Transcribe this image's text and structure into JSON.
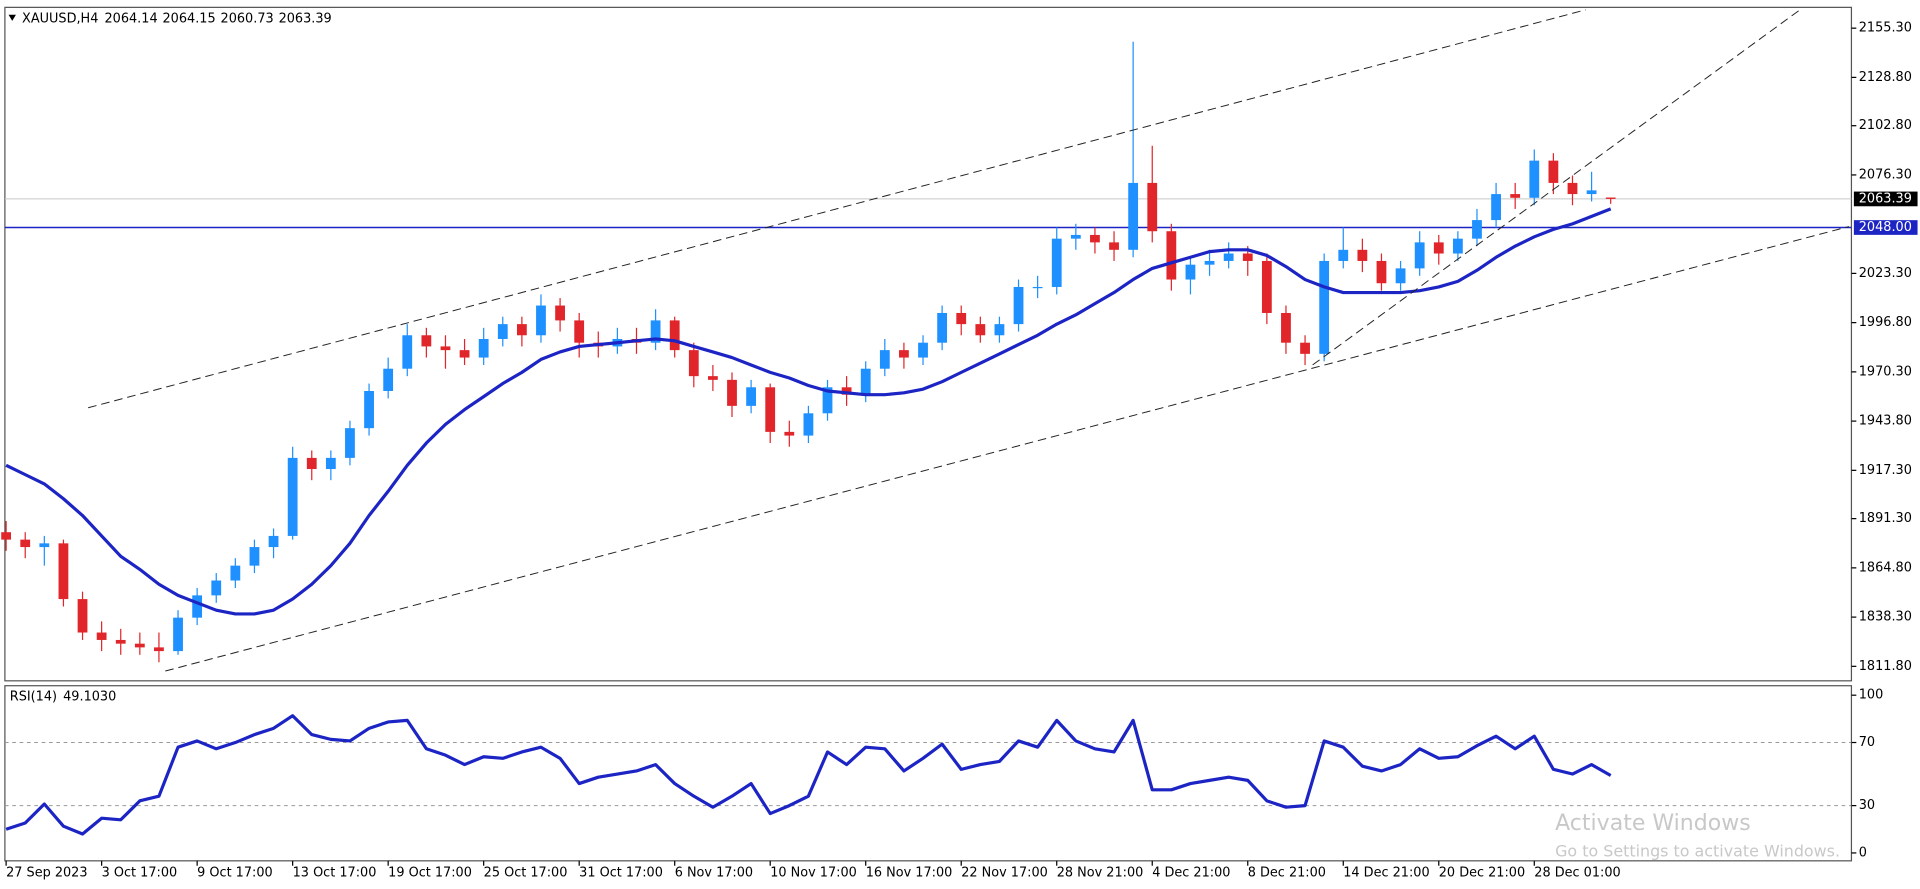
{
  "chart_data": [
    {
      "type": "candlestick",
      "title": "XAUUSD,H4",
      "categories": [
        "27 Sep 2023",
        null,
        null,
        null,
        null,
        "3 Oct 17:00",
        null,
        null,
        null,
        null,
        "9 Oct 17:00",
        null,
        null,
        null,
        null,
        "13 Oct 17:00",
        null,
        null,
        null,
        null,
        "19 Oct 17:00",
        null,
        null,
        null,
        null,
        "25 Oct 17:00",
        null,
        null,
        null,
        null,
        "31 Oct 17:00",
        null,
        null,
        null,
        null,
        "6 Nov 17:00",
        null,
        null,
        null,
        null,
        "10 Nov 17:00",
        null,
        null,
        null,
        null,
        "16 Nov 17:00",
        null,
        null,
        null,
        null,
        "22 Nov 17:00",
        null,
        null,
        null,
        null,
        "28 Nov 21:00",
        null,
        null,
        null,
        null,
        "4 Dec 21:00",
        null,
        null,
        null,
        null,
        "8 Dec 21:00",
        null,
        null,
        null,
        null,
        "14 Dec 21:00",
        null,
        null,
        null,
        null,
        "20 Dec 21:00",
        null,
        null,
        null,
        null,
        "28 Dec 01:00",
        null,
        null,
        null,
        null
      ],
      "open": [
        1884,
        1880,
        1876,
        1878,
        1848,
        1830,
        1826,
        1824,
        1822,
        1820,
        1838,
        1850,
        1858,
        1866,
        1876,
        1882,
        1924,
        1918,
        1924,
        1940,
        1960,
        1972,
        1990,
        1984,
        1982,
        1978,
        1988,
        1996,
        1990,
        2006,
        1998,
        1986,
        1984,
        1988,
        1986,
        1998,
        1982,
        1968,
        1966,
        1952,
        1962,
        1938,
        1936,
        1948,
        1962,
        1958,
        1972,
        1982,
        1978,
        1986,
        2002,
        1996,
        1990,
        1996,
        2016,
        2016,
        2042,
        2044,
        2040,
        2036,
        2072,
        2046,
        2020,
        2028,
        2030,
        2034,
        2030,
        2002,
        1986,
        1980,
        2030,
        2036,
        2030,
        2018,
        2026,
        2040,
        2034,
        2042,
        2052,
        2066,
        2064,
        2084,
        2072,
        2066,
        2064.14
      ],
      "high": [
        1890,
        1884,
        1882,
        1880,
        1852,
        1836,
        1832,
        1830,
        1830,
        1842,
        1854,
        1862,
        1870,
        1880,
        1886,
        1930,
        1928,
        1928,
        1944,
        1964,
        1978,
        1996,
        1994,
        1990,
        1988,
        1994,
        2000,
        2000,
        2012,
        2010,
        2002,
        1992,
        1994,
        1994,
        2004,
        2000,
        1986,
        1974,
        1970,
        1966,
        1964,
        1944,
        1952,
        1966,
        1968,
        1976,
        1988,
        1986,
        1990,
        2006,
        2006,
        2000,
        2000,
        2020,
        2022,
        2048,
        2050,
        2048,
        2046,
        2148,
        2092,
        2050,
        2032,
        2036,
        2040,
        2038,
        2034,
        2006,
        1990,
        2034,
        2048,
        2042,
        2034,
        2030,
        2046,
        2044,
        2046,
        2058,
        2072,
        2072,
        2090,
        2088,
        2076,
        2078,
        2064.15
      ],
      "low": [
        1874,
        1870,
        1866,
        1844,
        1826,
        1820,
        1818,
        1818,
        1814,
        1818,
        1834,
        1846,
        1854,
        1862,
        1870,
        1880,
        1912,
        1912,
        1920,
        1936,
        1956,
        1968,
        1978,
        1972,
        1974,
        1974,
        1984,
        1984,
        1986,
        1992,
        1978,
        1978,
        1980,
        1980,
        1982,
        1978,
        1962,
        1960,
        1946,
        1948,
        1932,
        1930,
        1932,
        1944,
        1952,
        1954,
        1968,
        1972,
        1974,
        1982,
        1990,
        1986,
        1986,
        1992,
        2010,
        2012,
        2036,
        2034,
        2030,
        2032,
        2040,
        2014,
        2012,
        2022,
        2026,
        2022,
        1996,
        1980,
        1974,
        1976,
        2026,
        2024,
        2014,
        2014,
        2022,
        2028,
        2030,
        2038,
        2048,
        2058,
        2060,
        2066,
        2060,
        2062,
        2060.73
      ],
      "close": [
        1880,
        1876,
        1878,
        1848,
        1830,
        1826,
        1824,
        1822,
        1820,
        1838,
        1850,
        1858,
        1866,
        1876,
        1882,
        1924,
        1918,
        1924,
        1940,
        1960,
        1972,
        1990,
        1984,
        1982,
        1978,
        1988,
        1996,
        1990,
        2006,
        1998,
        1986,
        1984,
        1988,
        1986,
        1998,
        1982,
        1968,
        1966,
        1952,
        1962,
        1938,
        1936,
        1948,
        1962,
        1958,
        1972,
        1982,
        1978,
        1986,
        2002,
        1996,
        1990,
        1996,
        2016,
        2016,
        2042,
        2044,
        2040,
        2036,
        2072,
        2046,
        2020,
        2028,
        2030,
        2034,
        2030,
        2002,
        1986,
        1980,
        2030,
        2036,
        2030,
        2018,
        2026,
        2040,
        2034,
        2042,
        2052,
        2066,
        2064,
        2084,
        2072,
        2066,
        2068,
        2063.39
      ],
      "up_color": "#1e90ff",
      "down_color": "#e0262b",
      "overlay": {
        "color": "#1c24c4",
        "values": [
          1920,
          1915,
          1910,
          1902,
          1893,
          1882,
          1871,
          1864,
          1856,
          1850,
          1846,
          1842,
          1840,
          1840,
          1842,
          1848,
          1856,
          1866,
          1878,
          1893,
          1906,
          1920,
          1932,
          1942,
          1950,
          1957,
          1964,
          1970,
          1977,
          1981,
          1984,
          1985,
          1986,
          1987,
          1988,
          1987,
          1984,
          1981,
          1978,
          1974,
          1970,
          1967,
          1963,
          1960,
          1959,
          1958,
          1958,
          1959,
          1961,
          1965,
          1970,
          1975,
          1980,
          1985,
          1990,
          1996,
          2001,
          2007,
          2013,
          2020,
          2026,
          2029,
          2032,
          2035,
          2036,
          2036,
          2033,
          2027,
          2020,
          2016,
          2013,
          2013,
          2013,
          2013,
          2014,
          2016,
          2019,
          2025,
          2032,
          2038,
          2043,
          2047,
          2050,
          2054,
          2058
        ]
      },
      "hline": {
        "value": 2048,
        "label": "2048.00",
        "color": "#1c24c4"
      },
      "ylim": [
        1804,
        2166.5
      ],
      "yticks": [
        {
          "value": 1811.8,
          "label": "1811.80"
        },
        {
          "value": 1838.3,
          "label": "1838.30"
        },
        {
          "value": 1864.8,
          "label": "1864.80"
        },
        {
          "value": 1891.3,
          "label": "1891.30"
        },
        {
          "value": 1917.3,
          "label": "1917.30"
        },
        {
          "value": 1943.8,
          "label": "1943.80"
        },
        {
          "value": 1970.3,
          "label": "1970.30"
        },
        {
          "value": 1996.8,
          "label": "1996.80"
        },
        {
          "value": 2023.3,
          "label": "2023.30"
        },
        {
          "value": 2076.3,
          "label": "2076.30"
        },
        {
          "value": 2102.8,
          "label": "2102.80"
        },
        {
          "value": 2128.8,
          "label": "2128.80"
        },
        {
          "value": 2155.3,
          "label": "2155.30"
        }
      ]
    },
    {
      "type": "line",
      "title": "RSI(14)",
      "current": {
        "value": 49.103,
        "label": "49.1030"
      },
      "color": "#1c24c4",
      "values": [
        15,
        19,
        31,
        17,
        12,
        22,
        21,
        33,
        36,
        67,
        71,
        66,
        70,
        75,
        79,
        87,
        75,
        72,
        71,
        79,
        83,
        84,
        66,
        62,
        56,
        61,
        60,
        64,
        67,
        60,
        44,
        48,
        50,
        52,
        56,
        44,
        36,
        29,
        36,
        44,
        25,
        30,
        36,
        64,
        56,
        67,
        66,
        52,
        60,
        69,
        53,
        56,
        58,
        71,
        67,
        84,
        71,
        66,
        64,
        84,
        40,
        40,
        44,
        46,
        48,
        46,
        33,
        29,
        30,
        71,
        67,
        55,
        52,
        56,
        66,
        60,
        61,
        68,
        74,
        66,
        74,
        53,
        50,
        56,
        49.103
      ],
      "ylim": [
        -5,
        106
      ],
      "yticks": [
        0,
        30,
        70,
        100
      ],
      "levels": [
        30,
        70
      ]
    }
  ],
  "watermark": {
    "title": "Activate Windows",
    "subtitle": "Go to Settings to activate Windows."
  }
}
